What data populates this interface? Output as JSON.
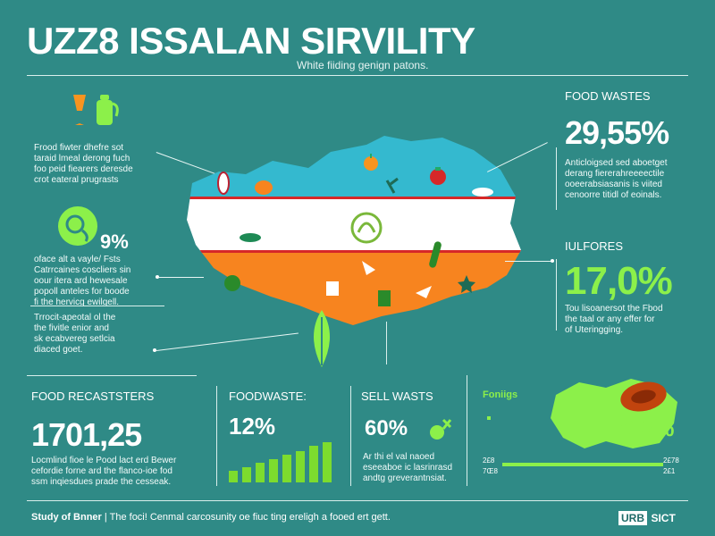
{
  "header": {
    "title": "UZZ8 ISSALAN SIRVILITY",
    "subtitle": "White fiiding genign patons."
  },
  "left_panel": {
    "intro_text": [
      "Frood fiwter dhefre sot",
      "taraid lmeal derong fuch",
      "foo peid fiearers deresde",
      "crot eateral prugrasts"
    ],
    "circle_percent": "9%",
    "circle_text": [
      "oface alt a vayle/ Fsts",
      "Catrrcaines coscliers sin",
      "oour itera ard hewesale",
      "popoll anteles for boode",
      "fi the hervicg ewilgell."
    ],
    "bottom_text": [
      "Trrocit-apeotal ol the",
      "the fivitle enior and",
      "sk ecabvereg setlcia",
      "diaced goet."
    ]
  },
  "right_panel": {
    "food_wastes_label": "FOOD WASTES",
    "food_wastes_value": "29,55%",
    "food_wastes_text": [
      "Anticloigsed sed aboetget",
      "derang fiererahreeeectile",
      "ooeerabsiasanis is viited",
      "cenoorre titidl of eoinals."
    ],
    "second_label": "IULFORES",
    "second_value": "17,0%",
    "second_text": [
      "Tou lisoanersot the Fbod",
      "the taal or any effer for",
      "of Uteringging."
    ]
  },
  "bottom_row": {
    "recasters_label": "FOOD RECASTSTERS",
    "recasters_value": "1701,25",
    "recasters_text": [
      "Locmlind fioe le Pood lact erd Bewer",
      "cefordie forne ard the flanco-ioe fod",
      "ssm inqiesdues prade the cesseak."
    ],
    "foodwaste_label": "FOODWASTE:",
    "foodwaste_value": "12%",
    "foodwaste_bars": [
      0.28,
      0.38,
      0.48,
      0.58,
      0.68,
      0.78,
      0.9,
      1.0
    ],
    "sell_label": "SELL WASTS",
    "sell_value": "60%",
    "sell_text": [
      "Ar thi el val naoed",
      "eseeaboe ic lasrinrasd",
      "andtg greverantnsiat."
    ],
    "map_label": "Foniigs",
    "map_value": "716%",
    "scale_left_top": "2£8",
    "scale_left_bottom": "7Œ8",
    "scale_right_top": "2£78",
    "scale_right_bottom": "2£1"
  },
  "footer": {
    "left_bold": "Study of Bnner",
    "text": "| The foci! Cenmal carcosunity oe fiuc ting ereligh a fooed ert gett.",
    "logo_a": "URB",
    "logo_b": "SICT"
  },
  "colors": {
    "background": "#2f8a86",
    "accent_green": "#8cf04a",
    "flag_blue": "#34b9cf",
    "flag_orange": "#f7841f",
    "flag_white": "#ffffff"
  }
}
